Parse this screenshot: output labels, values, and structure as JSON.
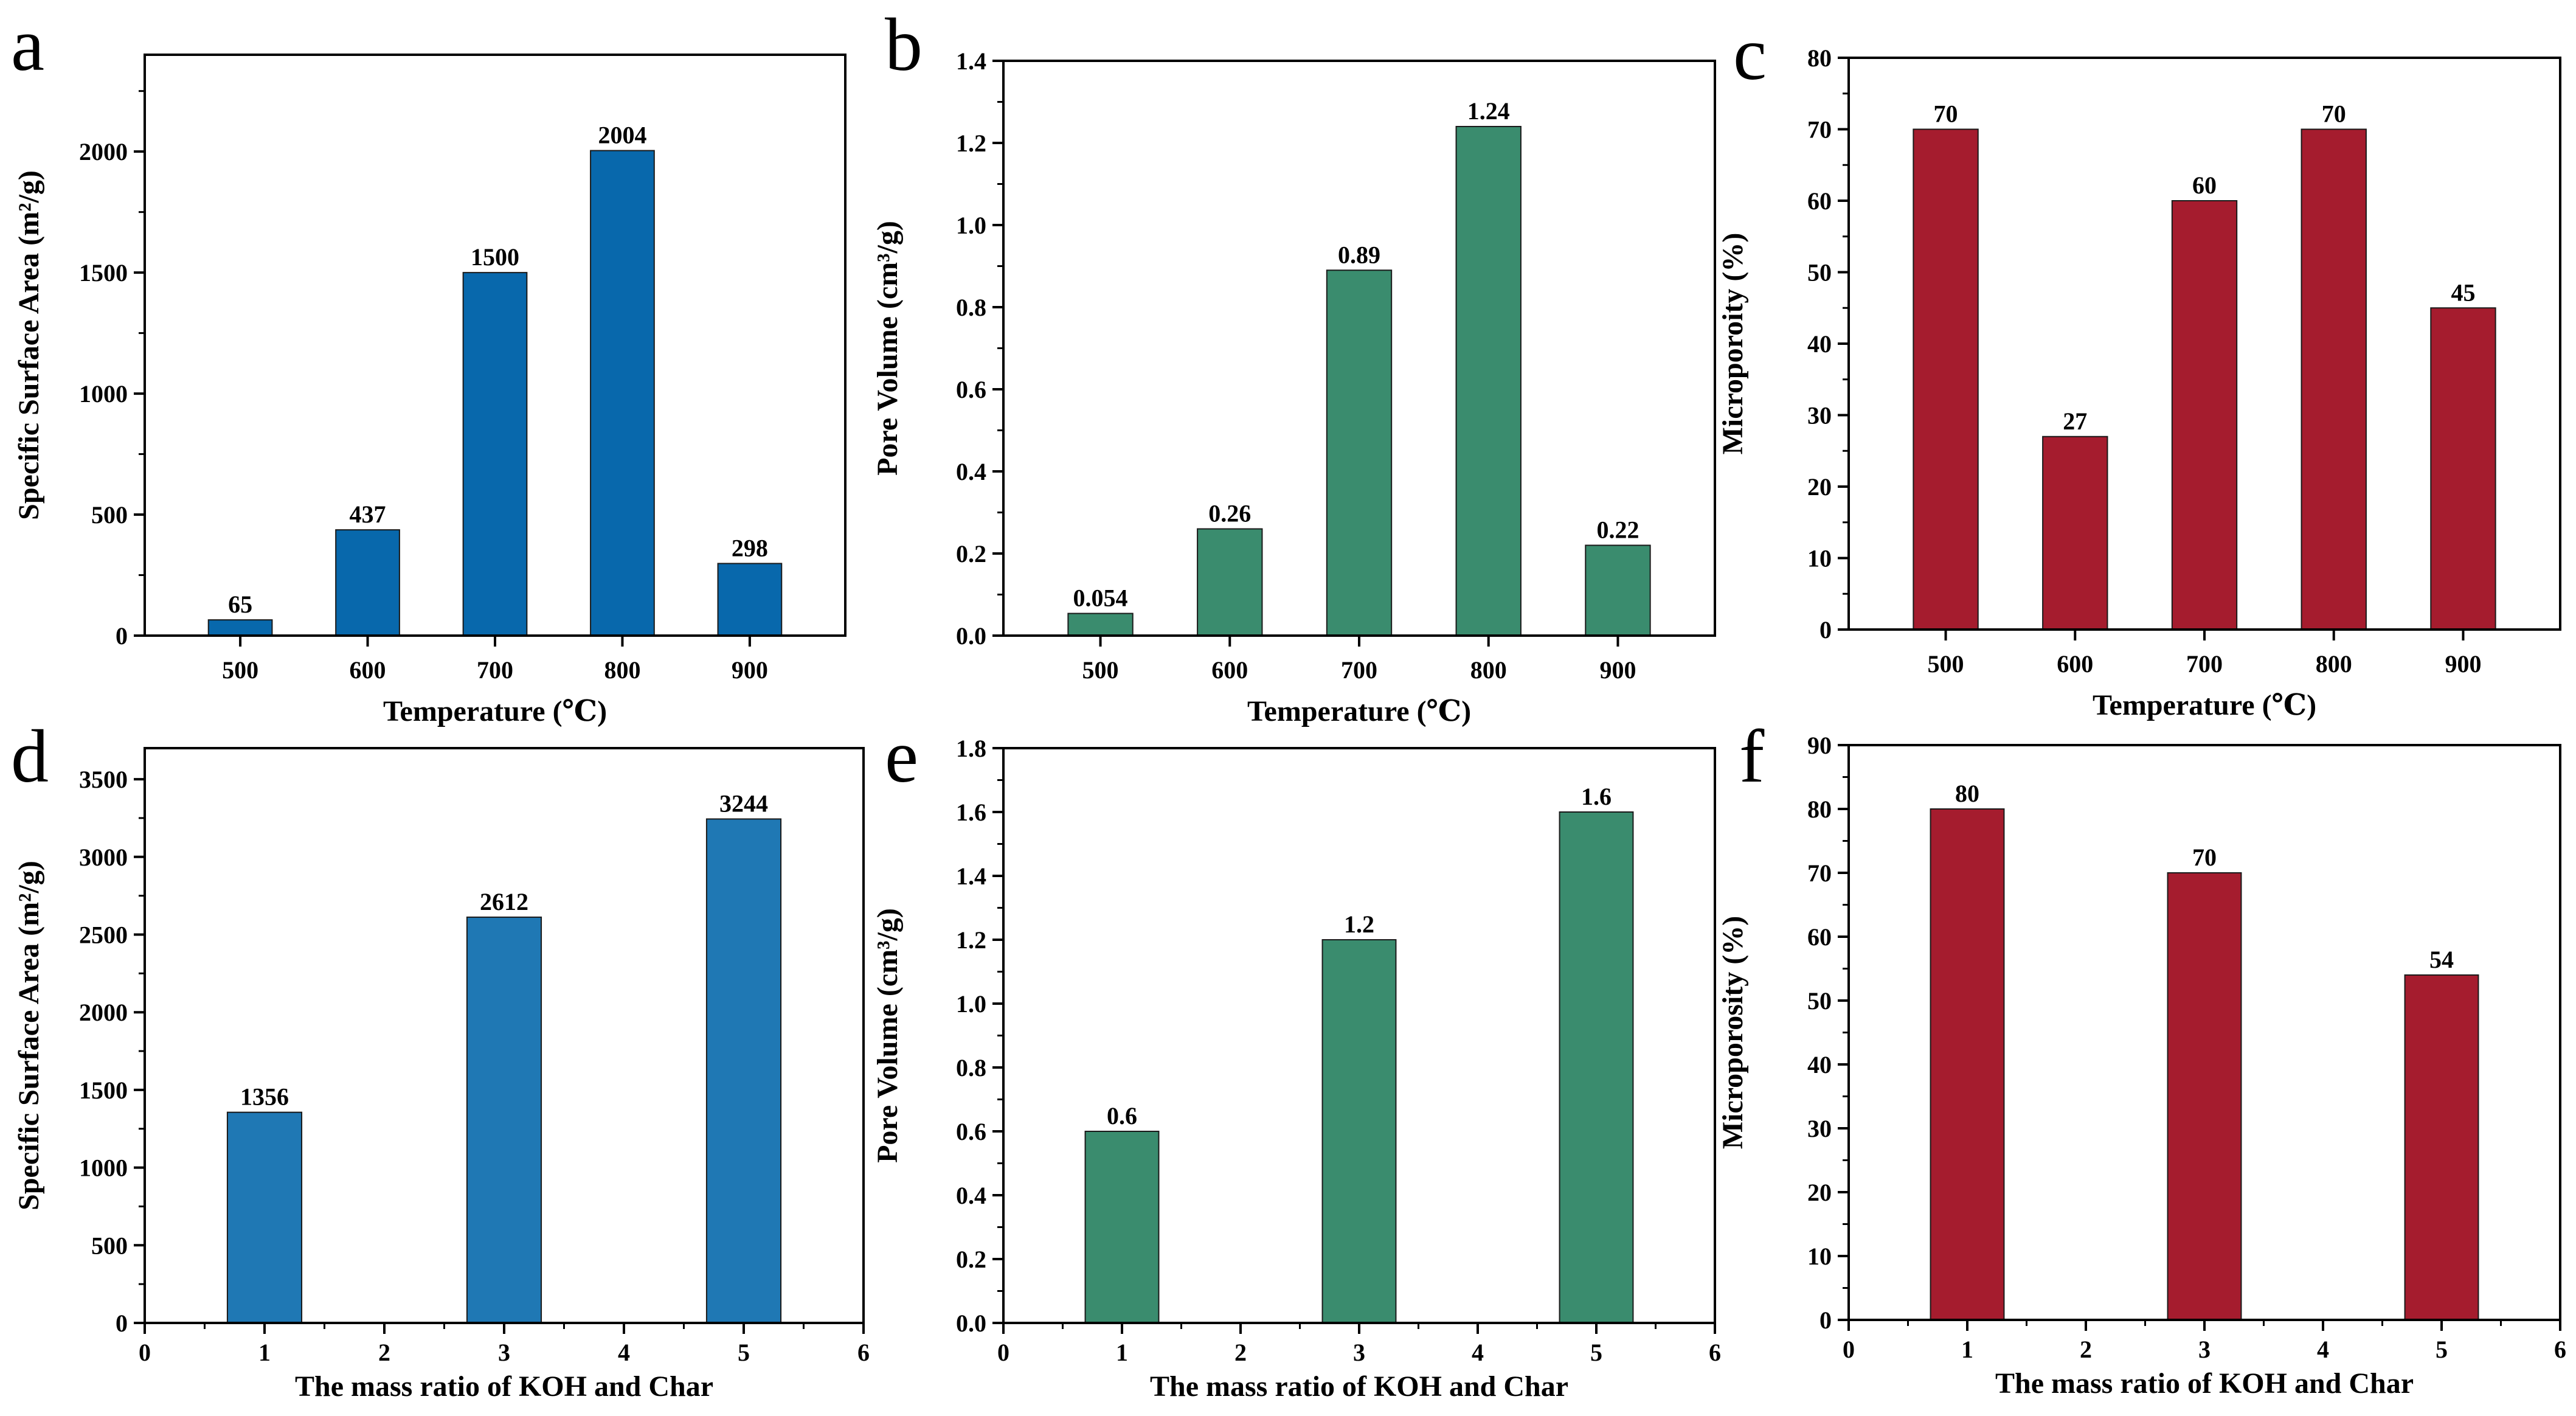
{
  "chart_data": [
    {
      "panel": "a",
      "type": "bar",
      "categories": [
        "500",
        "600",
        "700",
        "800",
        "900"
      ],
      "values": [
        65,
        437,
        1500,
        2004,
        298
      ],
      "value_labels": [
        "65",
        "437",
        "1500",
        "2004",
        "298"
      ],
      "xlabel": "Temperature (℃)",
      "ylabel": "Specific Surface Area (m²/g)",
      "ylim": [
        0,
        2400
      ],
      "yticks": [
        "0",
        "500",
        "1000",
        "1500",
        "2000"
      ],
      "color": "#0868ac",
      "grid": false
    },
    {
      "panel": "b",
      "type": "bar",
      "categories": [
        "500",
        "600",
        "700",
        "800",
        "900"
      ],
      "values": [
        0.054,
        0.26,
        0.89,
        1.24,
        0.22
      ],
      "value_labels": [
        "0.054",
        "0.26",
        "0.89",
        "1.24",
        "0.22"
      ],
      "xlabel": "Temperature (℃)",
      "ylabel": "Pore Volume (cm³/g)",
      "ylim": [
        0,
        1.4
      ],
      "yticks": [
        "0.0",
        "0.2",
        "0.4",
        "0.6",
        "0.8",
        "1.0",
        "1.2",
        "1.4"
      ],
      "color": "#3a8c6e",
      "grid": false
    },
    {
      "panel": "c",
      "type": "bar",
      "categories": [
        "500",
        "600",
        "700",
        "800",
        "900"
      ],
      "values": [
        70,
        27,
        60,
        70,
        45
      ],
      "value_labels": [
        "70",
        "27",
        "60",
        "70",
        "45"
      ],
      "xlabel": "Temperature (℃)",
      "ylabel": "Microporoity (%)",
      "ylim": [
        0,
        80
      ],
      "yticks": [
        "0",
        "10",
        "20",
        "30",
        "40",
        "50",
        "60",
        "70",
        "80"
      ],
      "color": "#a51c2e",
      "grid": false
    },
    {
      "panel": "d",
      "type": "bar",
      "x": [
        1,
        3,
        5
      ],
      "values": [
        1356,
        2612,
        3244
      ],
      "value_labels": [
        "1356",
        "2612",
        "3244"
      ],
      "xlabel": "The mass ratio of KOH and Char",
      "ylabel": "Specific Surface Area (m²/g)",
      "xlim": [
        0,
        6
      ],
      "xticks": [
        "0",
        "1",
        "2",
        "3",
        "4",
        "5",
        "6"
      ],
      "ylim": [
        0,
        3700
      ],
      "yticks": [
        "0",
        "500",
        "1000",
        "1500",
        "2000",
        "2500",
        "3000",
        "3500"
      ],
      "color": "#1f78b4",
      "grid": false
    },
    {
      "panel": "e",
      "type": "bar",
      "x": [
        1,
        3,
        5
      ],
      "values": [
        0.6,
        1.2,
        1.6
      ],
      "value_labels": [
        "0.6",
        "1.2",
        "1.6"
      ],
      "xlabel": "The mass ratio of KOH and Char",
      "ylabel": "Pore Volume (cm³/g)",
      "xlim": [
        0,
        6
      ],
      "xticks": [
        "0",
        "1",
        "2",
        "3",
        "4",
        "5",
        "6"
      ],
      "ylim": [
        0,
        1.8
      ],
      "yticks": [
        "0.0",
        "0.2",
        "0.4",
        "0.6",
        "0.8",
        "1.0",
        "1.2",
        "1.4",
        "1.6",
        "1.8"
      ],
      "color": "#3a8c6e",
      "grid": false
    },
    {
      "panel": "f",
      "type": "bar",
      "x": [
        1,
        3,
        5
      ],
      "values": [
        80,
        70,
        54
      ],
      "value_labels": [
        "80",
        "70",
        "54"
      ],
      "xlabel": "The mass ratio of KOH and Char",
      "ylabel": "Microporosity (%)",
      "xlim": [
        0,
        6
      ],
      "xticks": [
        "0",
        "1",
        "2",
        "3",
        "4",
        "5",
        "6"
      ],
      "ylim": [
        0,
        90
      ],
      "yticks": [
        "0",
        "10",
        "20",
        "30",
        "40",
        "50",
        "60",
        "70",
        "80",
        "90"
      ],
      "color": "#a51c2e",
      "grid": false
    }
  ]
}
